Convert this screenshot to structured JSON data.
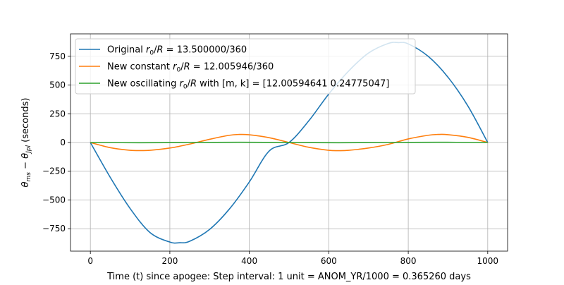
{
  "chart_data": {
    "type": "line",
    "title": "",
    "xlabel": "Time (t) since apogee: Step interval: 1 unit = ANOM_YR/1000 = 0.365260 days",
    "ylabel": "θ_ms − θ_Jpl (seconds)",
    "xlim": [
      -50,
      1050
    ],
    "ylim": [
      -945,
      945
    ],
    "xticks": [
      0,
      200,
      400,
      600,
      800,
      1000
    ],
    "yticks": [
      -750,
      -500,
      -250,
      0,
      250,
      500,
      750
    ],
    "grid": true,
    "legend_position": "top-left",
    "series": [
      {
        "name": "Original r0/R = 13.500000/360",
        "legend_parts": [
          "Original ",
          "r",
          "0",
          "/",
          "R",
          " = 13.500000/360"
        ],
        "color": "#1f77b4",
        "x": [
          0,
          50,
          100,
          150,
          200,
          225,
          250,
          300,
          350,
          400,
          450,
          500,
          550,
          600,
          650,
          700,
          750,
          775,
          800,
          850,
          900,
          950,
          1000
        ],
        "y": [
          0,
          -303,
          -574,
          -783,
          -866,
          -872,
          -859,
          -756,
          -578,
          -343,
          -74,
          0,
          190,
          422,
          622,
          778,
          862,
          869,
          858,
          750,
          568,
          318,
          0
        ]
      },
      {
        "name": "New constant r0/R = 12.005946/360",
        "legend_parts": [
          "New constant ",
          "r",
          "0",
          "/",
          "R",
          " = 12.005946/360"
        ],
        "color": "#ff7f0e",
        "x": [
          0,
          50,
          100,
          125,
          150,
          200,
          250,
          300,
          350,
          375,
          400,
          450,
          500,
          550,
          600,
          625,
          650,
          700,
          750,
          800,
          850,
          875,
          900,
          950,
          1000
        ],
        "y": [
          0,
          -45,
          -68,
          -70,
          -68,
          -48,
          -14,
          28,
          63,
          70,
          67,
          42,
          0,
          -42,
          -68,
          -71,
          -68,
          -48,
          -16,
          31,
          63,
          70,
          68,
          45,
          0
        ]
      },
      {
        "name": "New oscillating r0/R with [m, k] = [12.00594641  0.24775047]",
        "legend_parts": [
          "New oscillating ",
          "r",
          "0",
          "/",
          "R",
          " with [m, k] = [12.00594641  0.24775047]"
        ],
        "color": "#2ca02c",
        "x": [
          0,
          125,
          250,
          375,
          500,
          625,
          750,
          875,
          1000
        ],
        "y": [
          0,
          -2,
          0,
          2,
          0,
          -2,
          0,
          2,
          0
        ]
      }
    ]
  }
}
